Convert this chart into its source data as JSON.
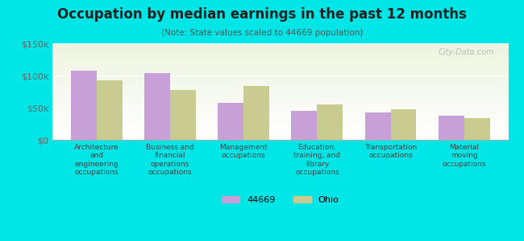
{
  "title": "Occupation by median earnings in the past 12 months",
  "subtitle": "(Note: State values scaled to 44669 population)",
  "background_color": "#00e5e5",
  "plot_bg_top": "#eef4e0",
  "plot_bg_bottom": "#ffffff",
  "categories": [
    "Architecture\nand\nengineering\noccupations",
    "Business and\nfinancial\noperations\noccupations",
    "Management\noccupations",
    "Education,\ntraining, and\nlibrary\noccupations",
    "Transportation\noccupations",
    "Material\nmoving\noccupations"
  ],
  "values_44669": [
    107000,
    104000,
    57000,
    45000,
    43000,
    38000
  ],
  "values_ohio": [
    92000,
    78000,
    84000,
    55000,
    48000,
    34000
  ],
  "color_44669": "#c8a0d8",
  "color_ohio": "#c8cc90",
  "ylim": [
    0,
    150000
  ],
  "yticks": [
    0,
    50000,
    100000,
    150000
  ],
  "ytick_labels": [
    "$0",
    "$50k",
    "$100k",
    "$150k"
  ],
  "legend_44669": "44669",
  "legend_ohio": "Ohio",
  "bar_width": 0.35
}
